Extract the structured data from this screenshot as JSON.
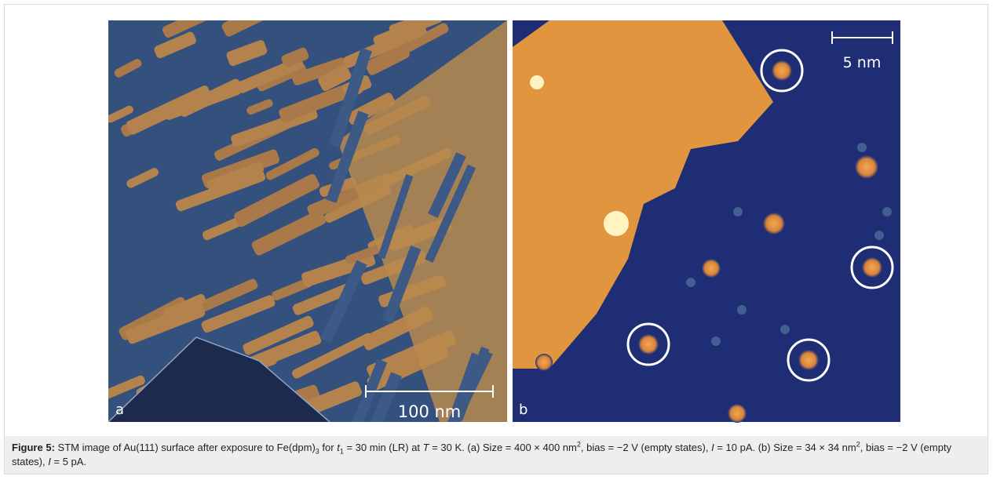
{
  "figure": {
    "panels": [
      {
        "label": "a",
        "scale_bar": "100 nm"
      },
      {
        "label": "b",
        "scale_bar": "5 nm"
      }
    ],
    "caption": {
      "label": "Figure 5:",
      "parts": [
        " STM image of Au(111) surface after exposure to Fe(dpm)",
        "3",
        " for ",
        "t",
        "1",
        " = 30 min (LR) at ",
        "T",
        " = 30 K. (a) Size = 400 × 400 nm",
        "2",
        ", bias = −2 V (empty states), ",
        "I",
        " = 10 pA. (b) Size = 34 × 34 nm",
        "2",
        ", bias = −2 V (empty states), ",
        "I",
        " = 5 pA."
      ]
    }
  }
}
